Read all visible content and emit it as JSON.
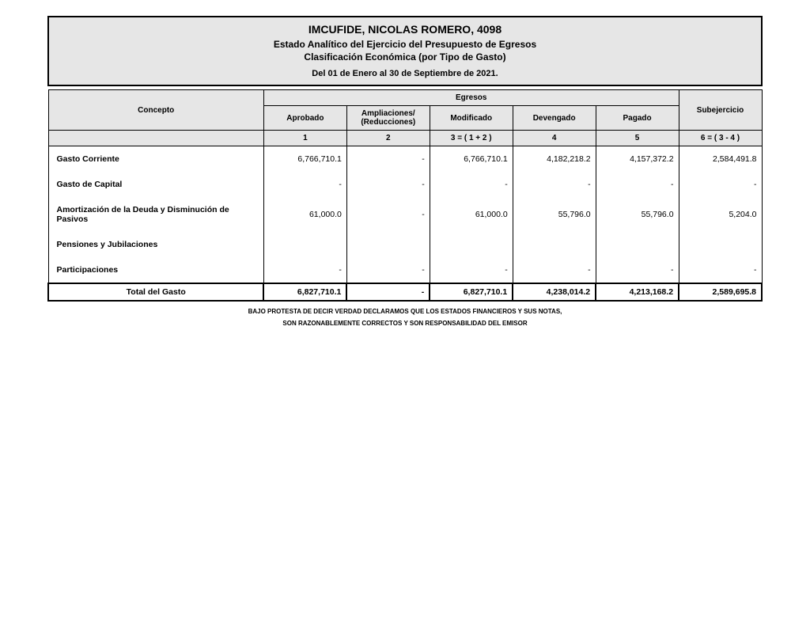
{
  "header": {
    "title": "IMCUFIDE, NICOLAS ROMERO, 4098",
    "subtitle1": "Estado Analítico del Ejercicio del Presupuesto de Egresos",
    "subtitle2": "Clasificación Económica (por Tipo de Gasto)",
    "period": "Del 01 de Enero al 30 de Septiembre de 2021."
  },
  "columns": {
    "concepto": "Concepto",
    "egresos": "Egresos",
    "aprobado": "Aprobado",
    "ampliaciones": "Ampliaciones/ (Reducciones)",
    "modificado": "Modificado",
    "devengado": "Devengado",
    "pagado": "Pagado",
    "subejercicio": "Subejercicio",
    "n1": "1",
    "n2": "2",
    "n3": "3 = ( 1 + 2 )",
    "n4": "4",
    "n5": "5",
    "n6": "6 = ( 3 - 4 )"
  },
  "rows": [
    {
      "concept": "Gasto Corriente",
      "aprobado": "6,766,710.1",
      "ampl": "-",
      "mod": "6,766,710.1",
      "dev": "4,182,218.2",
      "pag": "4,157,372.2",
      "sub": "2,584,491.8"
    },
    {
      "concept": "Gasto de Capital",
      "aprobado": "-",
      "ampl": "-",
      "mod": "-",
      "dev": "-",
      "pag": "-",
      "sub": "-"
    },
    {
      "concept": "Amortización de la Deuda y Disminución de Pasivos",
      "aprobado": "61,000.0",
      "ampl": "-",
      "mod": "61,000.0",
      "dev": "55,796.0",
      "pag": "55,796.0",
      "sub": "5,204.0"
    },
    {
      "concept": "Pensiones y Jubilaciones",
      "aprobado": "",
      "ampl": "",
      "mod": "",
      "dev": "",
      "pag": "",
      "sub": ""
    },
    {
      "concept": "Participaciones",
      "aprobado": "-",
      "ampl": "-",
      "mod": "-",
      "dev": "-",
      "pag": "-",
      "sub": "-"
    }
  ],
  "total": {
    "label": "Total del Gasto",
    "aprobado": "6,827,710.1",
    "ampl": "-",
    "mod": "6,827,710.1",
    "dev": "4,238,014.2",
    "pag": "4,213,168.2",
    "sub": "2,589,695.8"
  },
  "footnote": {
    "line1": "BAJO PROTESTA DE DECIR VERDAD DECLARAMOS QUE LOS ESTADOS FINANCIEROS Y SUS NOTAS,",
    "line2": "SON RAZONABLEMENTE CORRECTOS Y SON RESPONSABILIDAD DEL EMISOR"
  },
  "style": {
    "header_bg": "#e6e6e6",
    "border_color": "#000000",
    "page_bg": "#ffffff",
    "title_fontsize": 14,
    "sub_fontsize": 12,
    "period_fontsize": 11,
    "table_fontsize": 10.5,
    "footnote_fontsize": 8
  }
}
